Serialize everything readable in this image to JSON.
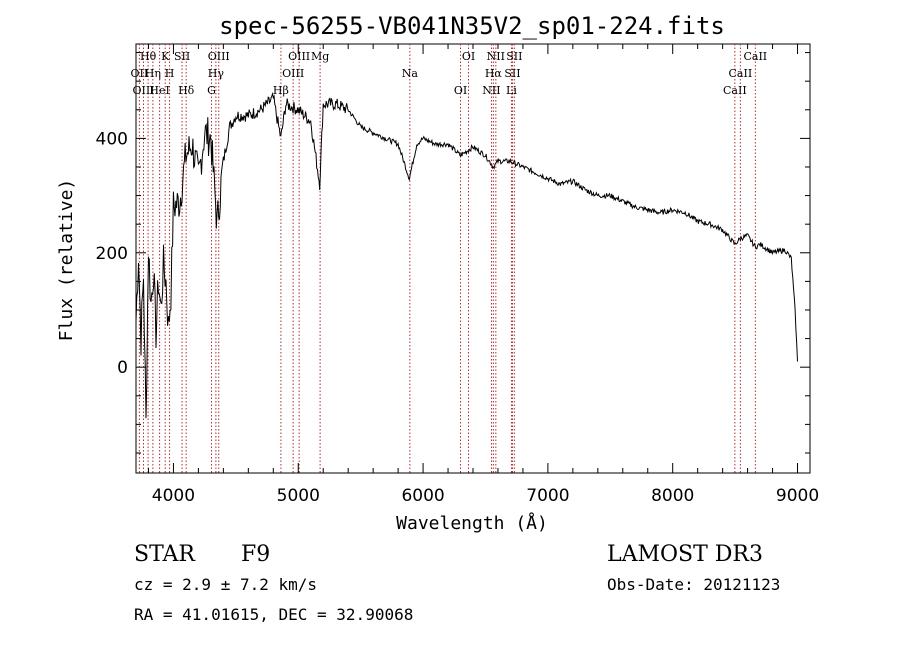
{
  "chart_data": {
    "type": "line",
    "title": "spec-56255-VB041N35V2_sp01-224.fits",
    "xlabel": "Wavelength (Å)",
    "ylabel": "Flux (relative)",
    "xlim": [
      3700,
      9100
    ],
    "ylim": [
      -185,
      565
    ],
    "xticks": [
      4000,
      5000,
      6000,
      7000,
      8000,
      9000
    ],
    "yticks": [
      0,
      200,
      400
    ],
    "grid": false,
    "series": [
      {
        "name": "flux",
        "x": [
          3700,
          3720,
          3740,
          3760,
          3780,
          3800,
          3820,
          3840,
          3860,
          3880,
          3900,
          3920,
          3940,
          3960,
          3980,
          4000,
          4050,
          4100,
          4150,
          4200,
          4250,
          4300,
          4350,
          4400,
          4450,
          4500,
          4600,
          4700,
          4800,
          4861,
          4900,
          5000,
          5100,
          5172,
          5200,
          5300,
          5400,
          5500,
          5600,
          5700,
          5800,
          5890,
          5950,
          6000,
          6100,
          6200,
          6300,
          6400,
          6500,
          6563,
          6600,
          6700,
          6800,
          6900,
          7000,
          7100,
          7200,
          7300,
          7400,
          7500,
          7600,
          7700,
          7800,
          7900,
          8000,
          8100,
          8200,
          8300,
          8400,
          8498,
          8542,
          8600,
          8662,
          8700,
          8800,
          8900,
          8950,
          8980,
          9000
        ],
        "values": [
          80,
          200,
          50,
          160,
          -100,
          210,
          110,
          170,
          60,
          150,
          100,
          180,
          150,
          70,
          130,
          280,
          290,
          370,
          390,
          330,
          410,
          400,
          250,
          360,
          420,
          440,
          440,
          450,
          470,
          400,
          460,
          450,
          430,
          320,
          460,
          460,
          450,
          420,
          410,
          400,
          390,
          330,
          390,
          400,
          390,
          390,
          370,
          385,
          370,
          350,
          360,
          360,
          350,
          340,
          330,
          320,
          325,
          310,
          300,
          300,
          290,
          280,
          275,
          270,
          275,
          270,
          255,
          250,
          240,
          215,
          225,
          230,
          210,
          215,
          200,
          205,
          190,
          100,
          10
        ]
      }
    ],
    "lines": [
      {
        "label": "Hθ",
        "wave": 3797
      },
      {
        "label": "OII",
        "wave": 3727
      },
      {
        "label": "OIII",
        "wave": 3760
      },
      {
        "label": "Hη",
        "wave": 3835
      },
      {
        "label": "HeI",
        "wave": 3889
      },
      {
        "label": "K",
        "wave": 3934
      },
      {
        "label": "SII",
        "wave": 4069
      },
      {
        "label": "H",
        "wave": 3969
      },
      {
        "label": "Hδ",
        "wave": 4102
      },
      {
        "label": "OIII",
        "wave": 4363
      },
      {
        "label": "Hγ",
        "wave": 4340
      },
      {
        "label": "G",
        "wave": 4305
      },
      {
        "label": "OIII",
        "wave": 5007
      },
      {
        "label": "OIII",
        "wave": 4959
      },
      {
        "label": "Hβ",
        "wave": 4861
      },
      {
        "label": "Mg",
        "wave": 5175
      },
      {
        "label": "Na",
        "wave": 5894
      },
      {
        "label": "OI",
        "wave": 6300
      },
      {
        "label": "OI",
        "wave": 6364
      },
      {
        "label": "Hα",
        "wave": 6563
      },
      {
        "label": "NII",
        "wave": 6548
      },
      {
        "label": "NII",
        "wave": 6583
      },
      {
        "label": "SII",
        "wave": 6716
      },
      {
        "label": "Li",
        "wave": 6708
      },
      {
        "label": "SII",
        "wave": 6731
      },
      {
        "label": "CaII",
        "wave": 8542
      },
      {
        "label": "CaII",
        "wave": 8498
      },
      {
        "label": "CaII",
        "wave": 8662
      }
    ]
  },
  "footer": {
    "class_label": "STAR",
    "subclass": "F9",
    "survey": "LAMOST DR3",
    "cz_text": "cz = 2.9 ± 7.2 km/s",
    "obs_date": "Obs-Date: 20121123",
    "radec": "RA =  41.01615, DEC =  32.90068"
  }
}
